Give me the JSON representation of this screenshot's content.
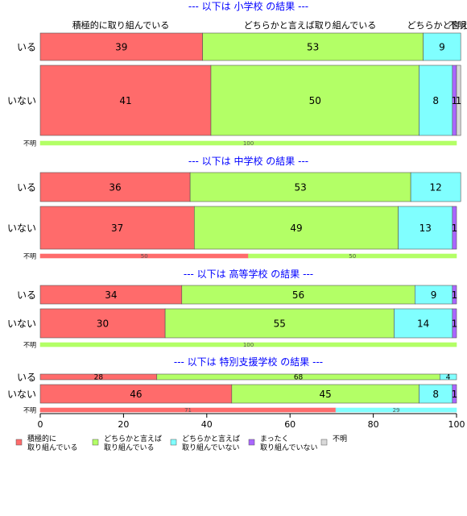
{
  "chart_data": {
    "type": "bar",
    "orientation": "horizontal",
    "stacked": true,
    "xlim": [
      0,
      100
    ],
    "x_ticks": [
      0,
      20,
      40,
      60,
      80,
      100
    ],
    "grid": false,
    "legend_position": "bottom",
    "top_column_labels": [
      "積極的に取り組んでいる",
      "どちらかと言えば取り組んでいる",
      "どちらかと言え",
      "不明"
    ],
    "legend": [
      {
        "label": "積極的に\n取り組んでいる",
        "color": "#ff6b6b"
      },
      {
        "label": "どちらかと言えば\n取り組んでいる",
        "color": "#b3ff66"
      },
      {
        "label": "どちらかと言えば\n取り組んでいない",
        "color": "#80ffff"
      },
      {
        "label": "まったく\n取り組んでいない",
        "color": "#aa66ff"
      },
      {
        "label": "不明",
        "color": "#d9d9d9"
      }
    ],
    "groups": [
      {
        "title": "--- 以下は 小学校 の結果 ---",
        "rows": [
          {
            "label": "いる",
            "values": [
              39,
              53,
              9,
              0,
              0
            ],
            "value_labels": [
              "39",
              "53",
              "9",
              "",
              ""
            ],
            "weight": 1
          },
          {
            "label": "いない",
            "values": [
              41,
              50,
              8,
              1,
              1
            ],
            "value_labels": [
              "41",
              "50",
              "8",
              "1",
              "1"
            ],
            "weight": 1.6
          }
        ],
        "unknown_row": {
          "label": "不明",
          "values": [
            0,
            100,
            0,
            0,
            0
          ],
          "value_labels": [
            "",
            "100",
            "",
            "",
            ""
          ]
        }
      },
      {
        "title": "--- 以下は 中学校 の結果 ---",
        "rows": [
          {
            "label": "いる",
            "values": [
              36,
              53,
              12,
              0,
              0
            ],
            "value_labels": [
              "36",
              "53",
              "12",
              "",
              ""
            ],
            "weight": 1
          },
          {
            "label": "いない",
            "values": [
              37,
              49,
              13,
              1,
              0
            ],
            "value_labels": [
              "37",
              "49",
              "13",
              "1",
              ""
            ],
            "weight": 1.5
          }
        ],
        "unknown_row": {
          "label": "不明",
          "values": [
            50,
            50,
            0,
            0,
            0
          ],
          "value_labels": [
            "50",
            "50",
            "",
            "",
            ""
          ]
        }
      },
      {
        "title": "--- 以下は 高等学校 の結果 ---",
        "rows": [
          {
            "label": "いる",
            "values": [
              34,
              56,
              9,
              1,
              0
            ],
            "value_labels": [
              "34",
              "56",
              "9",
              "1",
              ""
            ],
            "weight": 1
          },
          {
            "label": "いない",
            "values": [
              30,
              55,
              14,
              1,
              0
            ],
            "value_labels": [
              "30",
              "55",
              "14",
              "1",
              ""
            ],
            "weight": 1.55
          }
        ],
        "unknown_row": {
          "label": "不明",
          "values": [
            0,
            100,
            0,
            0,
            0
          ],
          "value_labels": [
            "",
            "100",
            "",
            "",
            ""
          ]
        }
      },
      {
        "title": "--- 以下は 特別支援学校 の結果 ---",
        "rows": [
          {
            "label": "いる",
            "values": [
              28,
              68,
              4,
              0,
              0
            ],
            "value_labels": [
              "28",
              "68",
              "4",
              "",
              ""
            ],
            "weight": 0.4
          },
          {
            "label": "いない",
            "values": [
              46,
              45,
              8,
              1,
              0
            ],
            "value_labels": [
              "46",
              "45",
              "8",
              "1",
              ""
            ],
            "weight": 1.1
          }
        ],
        "unknown_row": {
          "label": "不明",
          "values": [
            71,
            0,
            29,
            0,
            0
          ],
          "value_labels": [
            "71",
            "",
            "29",
            "",
            ""
          ]
        }
      }
    ]
  }
}
